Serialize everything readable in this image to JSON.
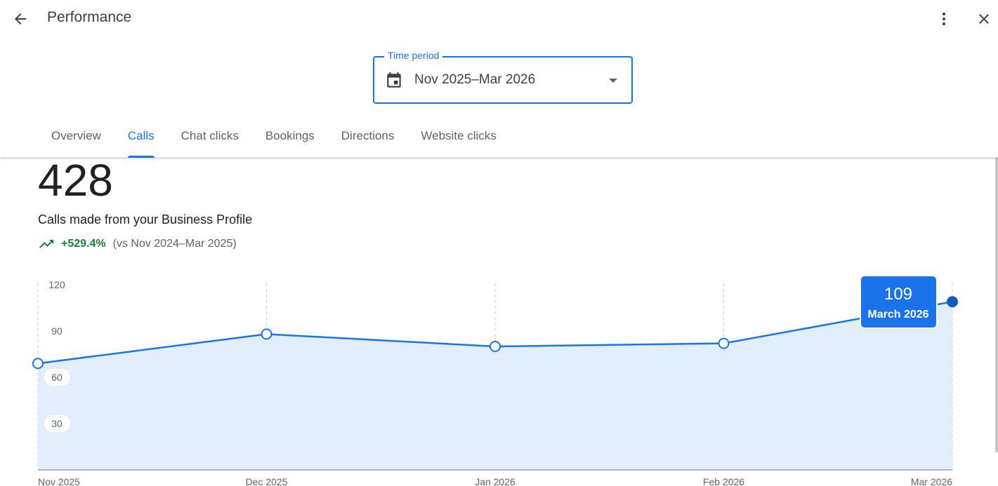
{
  "header": {
    "title": "Performance"
  },
  "time_period": {
    "label": "Time period",
    "value": "Nov 2025–Mar 2026"
  },
  "tabs": [
    {
      "label": "Overview"
    },
    {
      "label": "Calls"
    },
    {
      "label": "Chat clicks"
    },
    {
      "label": "Bookings"
    },
    {
      "label": "Directions"
    },
    {
      "label": "Website clicks"
    }
  ],
  "active_tab": "Calls",
  "summary": {
    "total": "428",
    "description": "Calls made from your Business Profile",
    "change": "+529.4%",
    "comparison": "(vs Nov 2024–Mar 2025)"
  },
  "tooltip": {
    "value": "109",
    "label": "March 2026"
  },
  "colors": {
    "accent": "#1a73e8",
    "positive": "#188038",
    "area_fill": "#e2edfc"
  },
  "icons": {
    "back": "arrow-back-icon",
    "more": "more-vert-icon",
    "close": "close-icon",
    "calendar": "calendar-icon",
    "dropdown": "arrow-drop-down-icon",
    "trend": "trending-up-icon"
  },
  "chart_data": {
    "type": "area",
    "x": [
      "Nov 2025",
      "Dec 2025",
      "Jan 2026",
      "Feb 2026",
      "Mar 2026"
    ],
    "series": [
      {
        "values": [
          69,
          88,
          80,
          82,
          109
        ]
      }
    ],
    "y_ticks": [
      30,
      60,
      90,
      120
    ],
    "ylim": [
      0,
      120
    ],
    "grid": "vertical dashed",
    "highlighted_point": "Mar 2026"
  }
}
